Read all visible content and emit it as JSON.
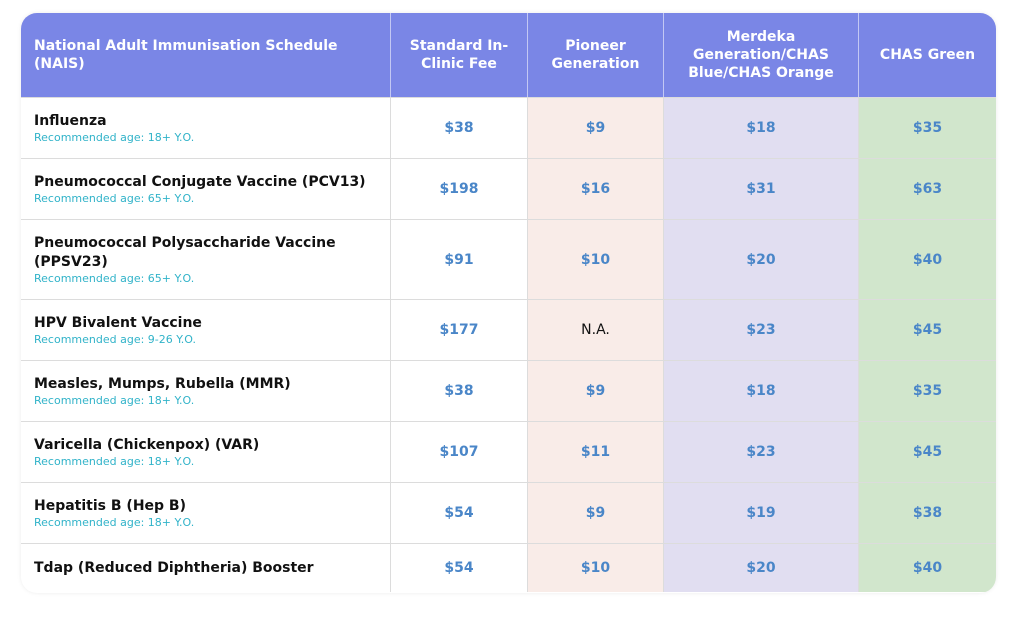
{
  "header": {
    "col0": "National Adult Immunisation Schedule (NAIS)",
    "col1": "Standard In-Clinic Fee",
    "col2": "Pioneer Generation",
    "col3": "Merdeka Generation/CHAS Blue/CHAS Orange",
    "col4": "CHAS Green"
  },
  "rows": [
    {
      "name": "Influenza",
      "age": "Recommended age: 18+ Y.O.",
      "standard": "$38",
      "pioneer": "$9",
      "merdeka": "$18",
      "green": "$35"
    },
    {
      "name": "Pneumococcal Conjugate Vaccine (PCV13)",
      "age": "Recommended age: 65+ Y.O.",
      "standard": "$198",
      "pioneer": "$16",
      "merdeka": "$31",
      "green": "$63"
    },
    {
      "name": "Pneumococcal Polysaccharide Vaccine (PPSV23)",
      "age": "Recommended age: 65+ Y.O.",
      "standard": "$91",
      "pioneer": "$10",
      "merdeka": "$20",
      "green": "$40"
    },
    {
      "name": "HPV Bivalent Vaccine",
      "age": "Recommended age: 9-26 Y.O.",
      "standard": "$177",
      "pioneer": "N.A.",
      "merdeka": "$23",
      "green": "$45"
    },
    {
      "name": "Measles, Mumps, Rubella (MMR)",
      "age": "Recommended age: 18+ Y.O.",
      "standard": "$38",
      "pioneer": "$9",
      "merdeka": "$18",
      "green": "$35"
    },
    {
      "name": "Varicella (Chickenpox) (VAR)",
      "age": "Recommended age: 18+ Y.O.",
      "standard": "$107",
      "pioneer": "$11",
      "merdeka": "$23",
      "green": "$45"
    },
    {
      "name": "Hepatitis B (Hep B)",
      "age": "Recommended age: 18+ Y.O.",
      "standard": "$54",
      "pioneer": "$9",
      "merdeka": "$19",
      "green": "$38"
    },
    {
      "name": "Tdap (Reduced Diphtheria) Booster",
      "age": "",
      "standard": "$54",
      "pioneer": "$10",
      "merdeka": "$20",
      "green": "$40"
    }
  ],
  "colors": {
    "header_bg": "#7a86e6",
    "pioneer_bg": "#f9ece8",
    "merdeka_bg": "#e1def1",
    "green_bg": "#d1e6cc",
    "price_text": "#4a86c8",
    "age_text": "#31b3c9"
  }
}
